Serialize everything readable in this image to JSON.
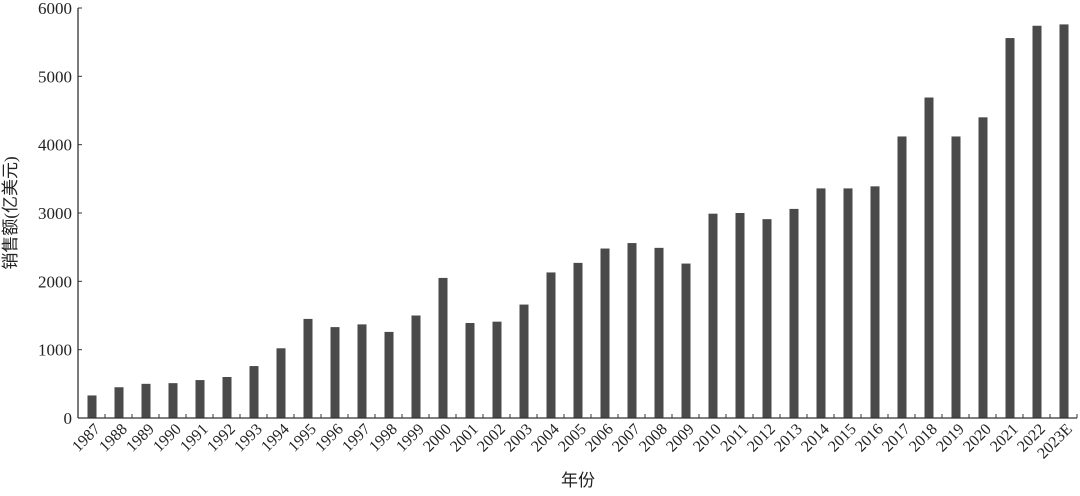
{
  "chart_data": {
    "type": "bar",
    "title": "",
    "xlabel": "年份",
    "ylabel": "销售额(亿美元)",
    "ylim": [
      0,
      6000
    ],
    "yticks": [
      0,
      1000,
      2000,
      3000,
      4000,
      5000,
      6000
    ],
    "grid": false,
    "bar_color": "#4a4a4a",
    "categories": [
      "1987",
      "1988",
      "1989",
      "1990",
      "1991",
      "1992",
      "1993",
      "1994",
      "1995",
      "1996",
      "1997",
      "1998",
      "1999",
      "2000",
      "2001",
      "2002",
      "2003",
      "2004",
      "2005",
      "2006",
      "2007",
      "2008",
      "2009",
      "2010",
      "2011",
      "2012",
      "2013",
      "2014",
      "2015",
      "2016",
      "2017",
      "2018",
      "2019",
      "2020",
      "2021",
      "2022",
      "2023E"
    ],
    "values": [
      330,
      450,
      500,
      510,
      555,
      600,
      760,
      1020,
      1450,
      1330,
      1370,
      1260,
      1500,
      2050,
      1390,
      1410,
      1660,
      2130,
      2270,
      2480,
      2560,
      2490,
      2260,
      2990,
      3000,
      2910,
      3060,
      3360,
      3360,
      3390,
      4120,
      4690,
      4120,
      4400,
      5560,
      5740,
      5760
    ]
  }
}
